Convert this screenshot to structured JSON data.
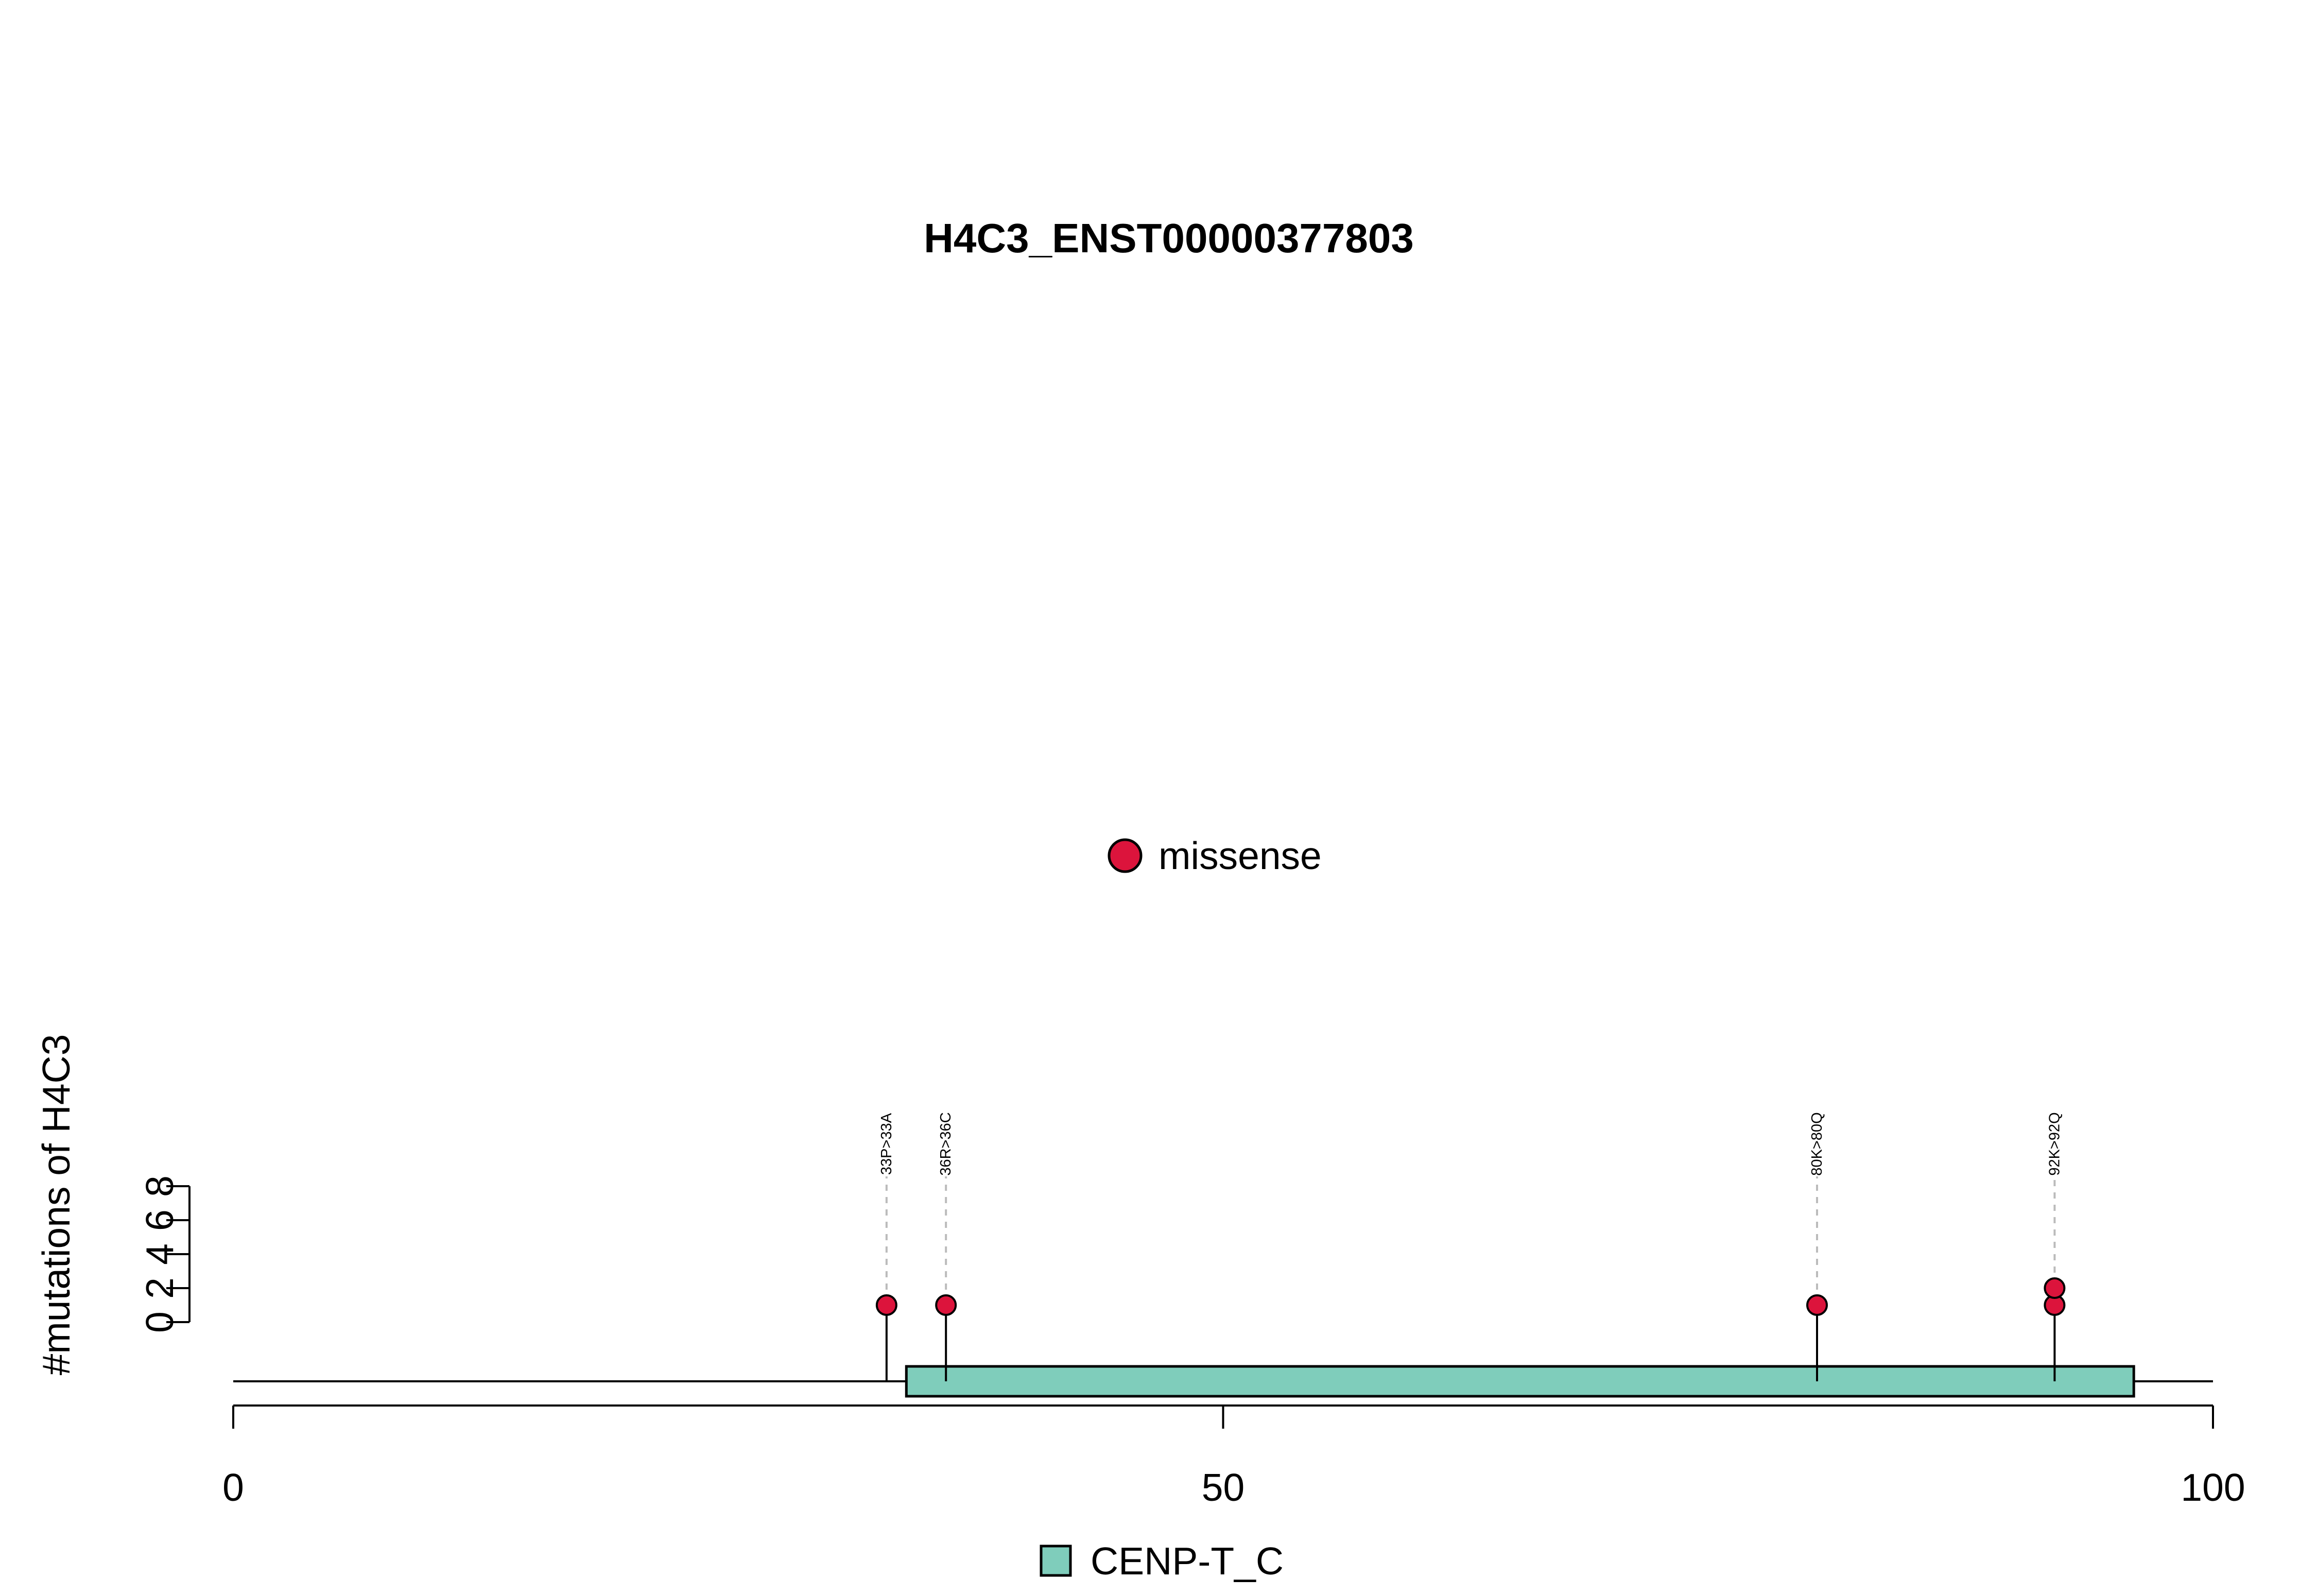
{
  "chart_data": {
    "type": "scatter",
    "subtype": "lollipop",
    "title": "H4C3_ENST00000377803",
    "ylabel": "#mutations of H4C3",
    "xlabel": "",
    "xlim": [
      0,
      100
    ],
    "x_ticks": [
      0,
      50,
      100
    ],
    "y_ticks": [
      0,
      2,
      4,
      6,
      8
    ],
    "legend_top": {
      "label": "missense",
      "color": "#dc143c"
    },
    "legend_bottom": {
      "label": "CENP-T_C",
      "color": "#7fcdbb"
    },
    "domains": [
      {
        "name": "CENP-T_C",
        "start": 34,
        "end": 96,
        "color": "#7fcdbb"
      }
    ],
    "mutations": [
      {
        "pos": 33,
        "label": "33P>33A",
        "counts": [
          1
        ],
        "color": "#dc143c"
      },
      {
        "pos": 36,
        "label": "36R>36C",
        "counts": [
          1
        ],
        "color": "#dc143c"
      },
      {
        "pos": 80,
        "label": "80K>80Q",
        "counts": [
          1
        ],
        "color": "#dc143c"
      },
      {
        "pos": 92,
        "label": "92K>92Q",
        "counts": [
          1,
          2
        ],
        "color": "#dc143c"
      }
    ]
  }
}
